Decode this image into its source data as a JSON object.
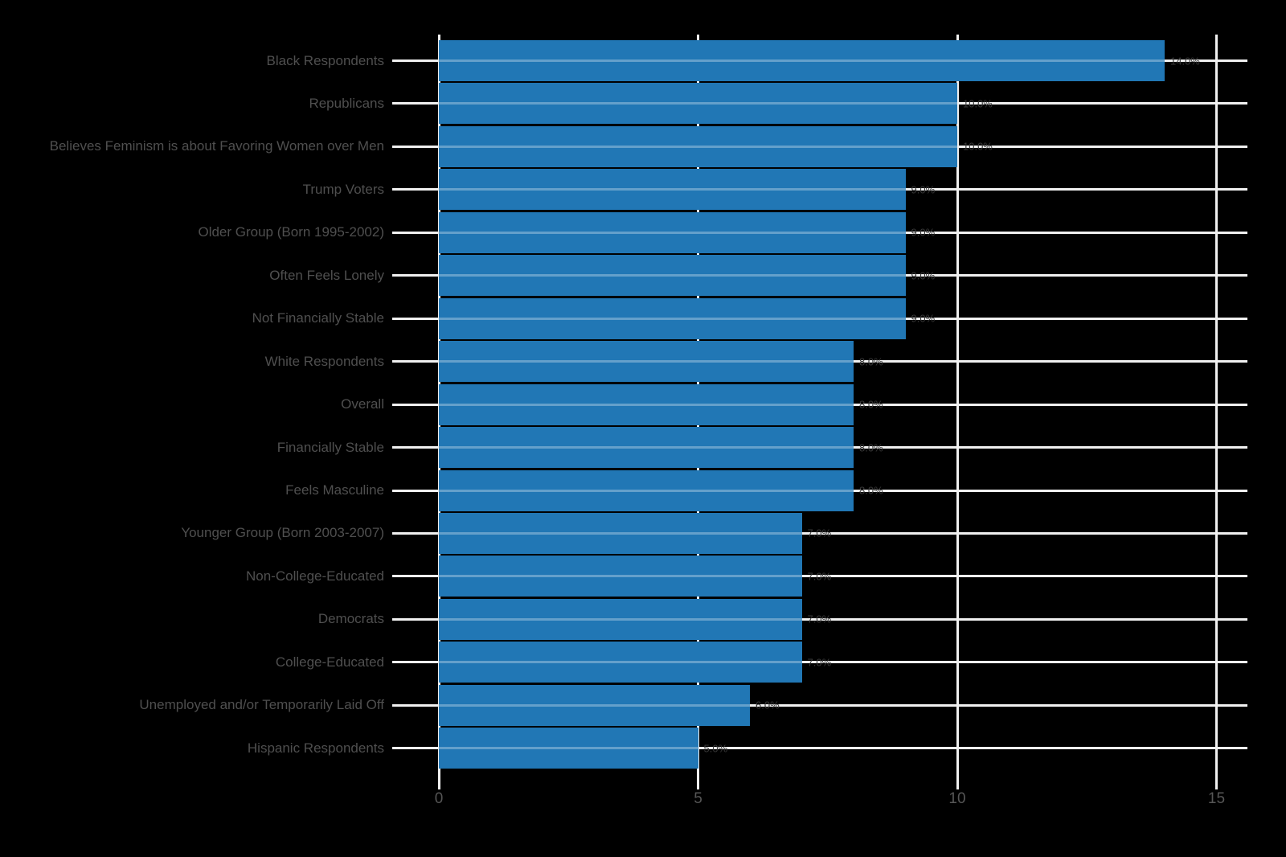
{
  "chart_data": {
    "type": "bar",
    "orientation": "horizontal",
    "title": "",
    "xlabel": "",
    "ylabel": "",
    "categories": [
      "Black Respondents",
      "Republicans",
      "Believes Feminism is about Favoring Women over Men",
      "Trump Voters",
      "Older Group (Born 1995-2002)",
      "Often Feels Lonely",
      "Not Financially Stable",
      "White Respondents",
      "Overall",
      "Financially Stable",
      "Feels Masculine",
      "Younger Group (Born 2003-2007)",
      "Non-College-Educated",
      "Democrats",
      "College-Educated",
      "Unemployed and/or Temporarily Laid Off",
      "Hispanic Respondents"
    ],
    "values": [
      14.0,
      10.0,
      10.0,
      9.0,
      9.0,
      9.0,
      9.0,
      8.0,
      8.0,
      8.0,
      8.0,
      7.0,
      7.0,
      7.0,
      7.0,
      6.0,
      5.0
    ],
    "value_labels": [
      "14.0%",
      "10.0%",
      "10.0%",
      "9.0%",
      "9.0%",
      "9.0%",
      "9.0%",
      "8.0%",
      "8.0%",
      "8.0%",
      "8.0%",
      "7.0%",
      "7.0%",
      "7.0%",
      "7.0%",
      "6.0%",
      "5.0%"
    ],
    "x_ticks": [
      "0",
      "5",
      "10",
      "15"
    ],
    "x_tick_values": [
      0,
      5,
      10,
      15
    ],
    "xlim": [
      0,
      15.6
    ],
    "grid": true,
    "legend": null,
    "colors": {
      "bar": "#2177b5",
      "bar_gridline_overlay": "rgba(255,255,255,0.30)",
      "gridline": "#f0f0f0",
      "category_text": "#4f4f4f",
      "tick_text": "#565656",
      "value_text": "#383838",
      "background": "#000000"
    }
  }
}
